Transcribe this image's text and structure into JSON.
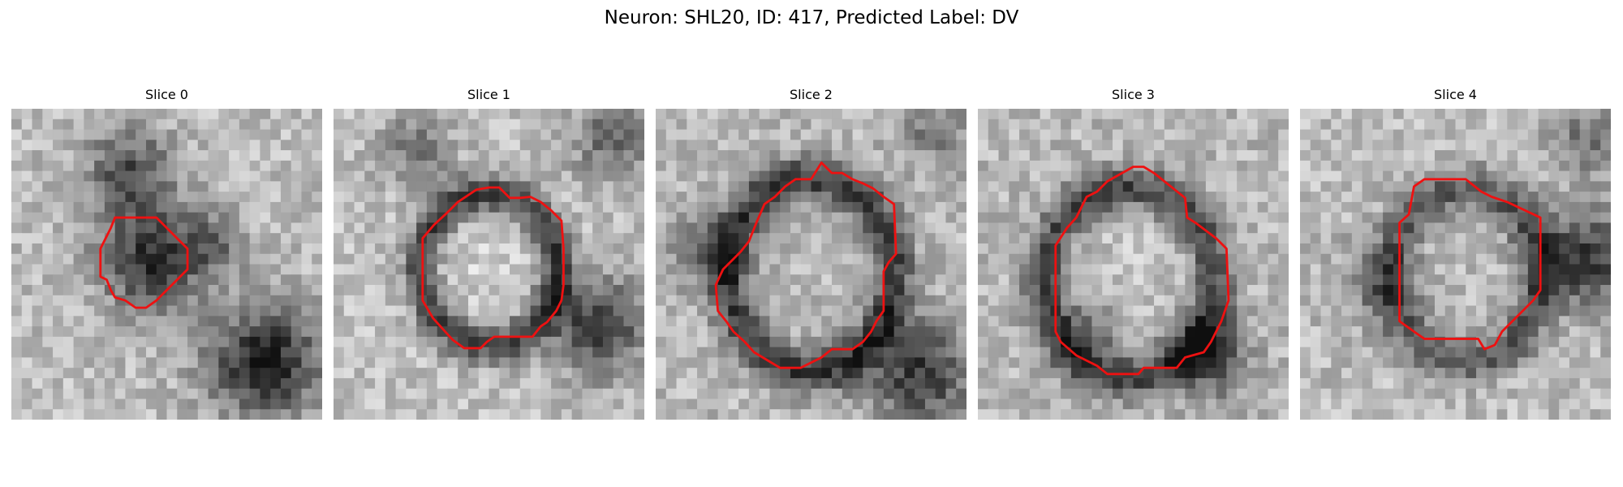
{
  "figure": {
    "title": "Neuron: SHL20, ID: 417, Predicted Label: DV"
  },
  "colors": {
    "contour": "#ee1111",
    "background": "#ffffff"
  },
  "panels": [
    {
      "title": "Slice 0"
    },
    {
      "title": "Slice 1"
    },
    {
      "title": "Slice 2"
    },
    {
      "title": "Slice 3"
    },
    {
      "title": "Slice 4"
    }
  ]
}
